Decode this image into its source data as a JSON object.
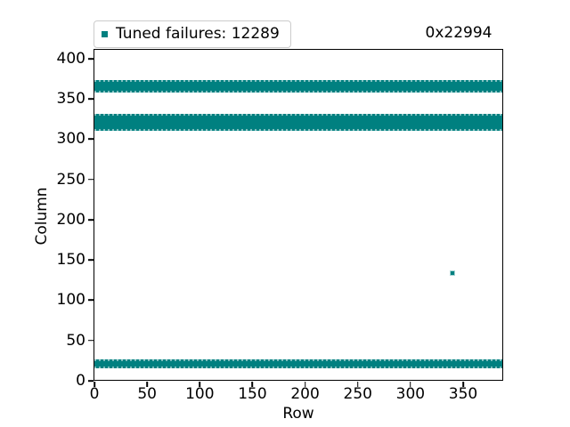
{
  "chart_data": {
    "type": "scatter",
    "title": "0x22994",
    "xlabel": "Row",
    "ylabel": "Column",
    "xlim": [
      0,
      388
    ],
    "ylim": [
      0,
      411
    ],
    "xticks": [
      0,
      50,
      100,
      150,
      200,
      250,
      300,
      350
    ],
    "yticks": [
      0,
      50,
      100,
      150,
      200,
      250,
      300,
      350,
      400
    ],
    "grid": false,
    "legend": {
      "label": "Tuned failures: 12289",
      "position": "upper left",
      "marker": "square"
    },
    "series": [
      {
        "name": "Tuned failures",
        "count": 12289,
        "marker_color": "#008080",
        "bands": [
          {
            "x_from": 0,
            "x_to": 388,
            "y_from": 358,
            "y_to": 373
          },
          {
            "x_from": 0,
            "x_to": 388,
            "y_from": 311,
            "y_to": 332
          },
          {
            "x_from": 0,
            "x_to": 388,
            "y_from": 15,
            "y_to": 27
          }
        ],
        "isolated_points": [
          {
            "x": 340,
            "y": 134
          }
        ]
      }
    ]
  },
  "colors": {
    "marker": "#008080",
    "axis": "#000000",
    "legend_border": "#cccccc",
    "background": "#ffffff"
  }
}
